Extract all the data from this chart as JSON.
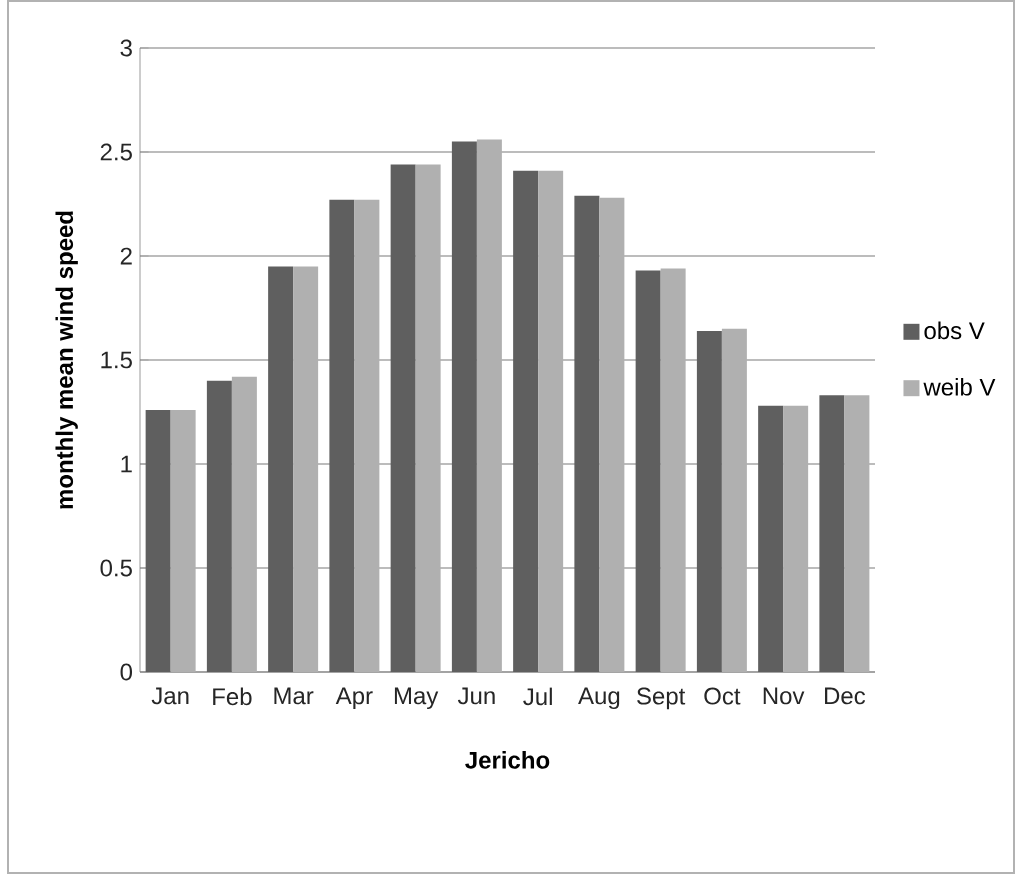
{
  "chart_data": {
    "type": "bar",
    "xlabel": "Jericho",
    "ylabel": "monthly mean wind speed",
    "categories": [
      "Jan",
      "Feb",
      "Mar",
      "Apr",
      "May",
      "Jun",
      "Jul",
      "Aug",
      "Sept",
      "Oct",
      "Nov",
      "Dec"
    ],
    "series": [
      {
        "name": "obs V",
        "color": "#5f5f5f",
        "values": [
          1.26,
          1.4,
          1.95,
          2.27,
          2.44,
          2.55,
          2.41,
          2.29,
          1.93,
          1.64,
          1.28,
          1.33
        ]
      },
      {
        "name": "weib V",
        "color": "#b0b0b0",
        "values": [
          1.26,
          1.42,
          1.95,
          2.27,
          2.44,
          2.56,
          2.41,
          2.28,
          1.94,
          1.65,
          1.28,
          1.33
        ]
      }
    ],
    "ylim": [
      0,
      3
    ],
    "yticks": [
      0,
      0.5,
      1,
      1.5,
      2,
      2.5,
      3
    ],
    "grid": "y",
    "legend": "right"
  }
}
